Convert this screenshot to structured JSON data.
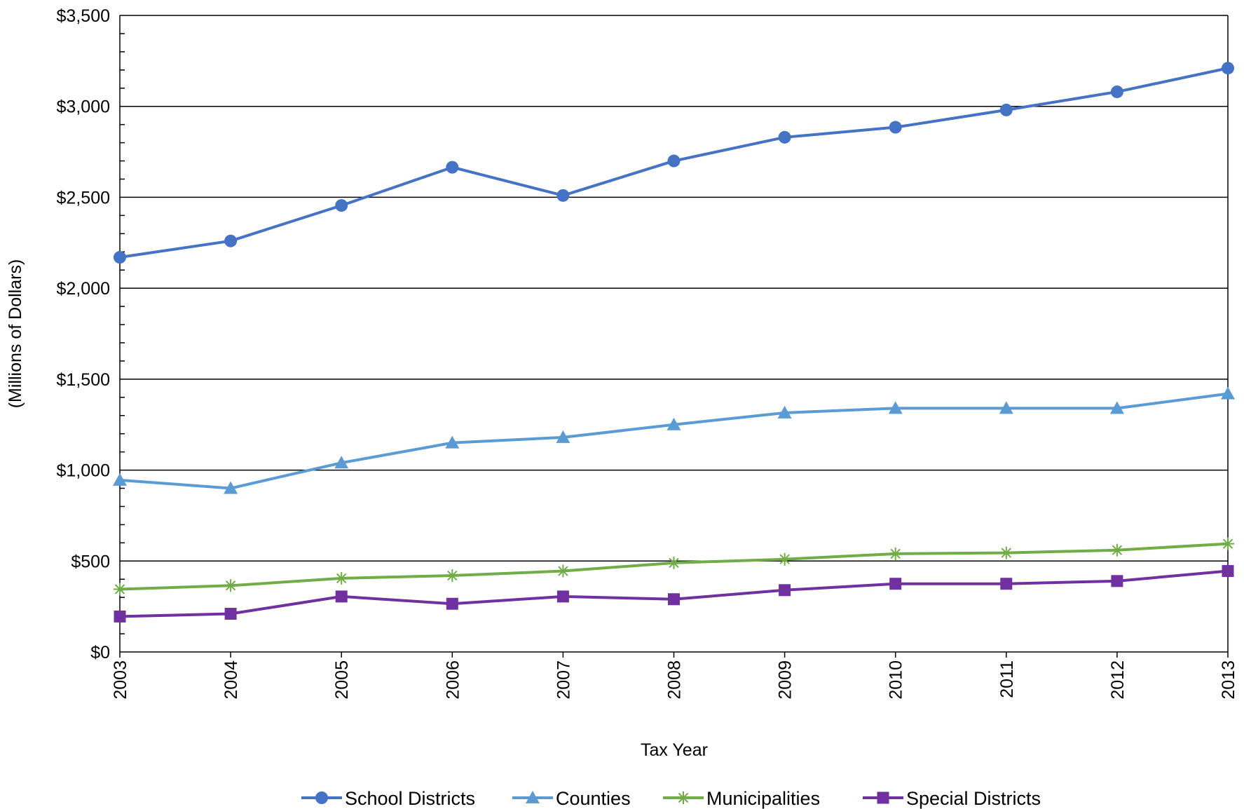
{
  "chart_data": {
    "type": "line",
    "title": "",
    "xlabel": "Tax Year",
    "ylabel": "(Millions of Dollars)",
    "categories": [
      "2003",
      "2004",
      "2005",
      "2006",
      "2007",
      "2008",
      "2009",
      "2010",
      "2011",
      "2012",
      "2013"
    ],
    "ylim": [
      0,
      3500
    ],
    "yticks": [
      0,
      500,
      1000,
      1500,
      2000,
      2500,
      3000,
      3500
    ],
    "ytick_labels": [
      "$0",
      "$500",
      "$1,000",
      "$1,500",
      "$2,000",
      "$2,500",
      "$3,000",
      "$3,500"
    ],
    "grid": "horizontal",
    "legend_position": "bottom",
    "series": [
      {
        "name": "School Districts",
        "color": "#4472C4",
        "marker": "circle",
        "values": [
          2170,
          2260,
          2455,
          2665,
          2510,
          2700,
          2830,
          2885,
          2980,
          3080,
          3210
        ]
      },
      {
        "name": "Counties",
        "color": "#5B9BD5",
        "marker": "triangle",
        "values": [
          945,
          900,
          1040,
          1150,
          1180,
          1250,
          1315,
          1340,
          1340,
          1340,
          1420
        ]
      },
      {
        "name": "Municipalities",
        "color": "#70AD47",
        "marker": "asterisk",
        "values": [
          345,
          365,
          405,
          420,
          445,
          490,
          510,
          540,
          545,
          560,
          595
        ]
      },
      {
        "name": "Special Districts",
        "color": "#7030A0",
        "marker": "square",
        "values": [
          195,
          210,
          305,
          265,
          305,
          290,
          340,
          375,
          375,
          390,
          445
        ]
      }
    ]
  }
}
